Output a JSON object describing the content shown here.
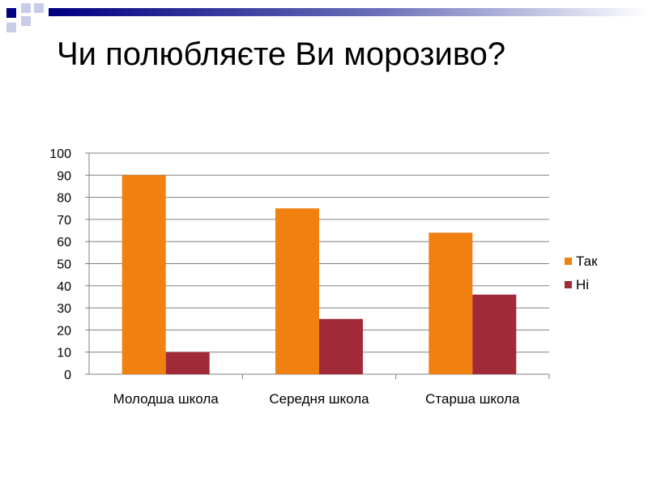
{
  "title": "Чи полюбляєте Ви морозиво?",
  "colors": {
    "accent_dark": "#000080",
    "accent_light": "#c8cce6",
    "series_yes": "#f08010",
    "series_no": "#a02a38",
    "grid": "#808080"
  },
  "chart_data": {
    "type": "bar",
    "title": "",
    "xlabel": "",
    "ylabel": "",
    "categories": [
      "Молодша школа",
      "Середня школа",
      "Старша школа"
    ],
    "series": [
      {
        "name": "Так",
        "values": [
          90,
          75,
          64
        ],
        "color": "#f08010"
      },
      {
        "name": "Ні",
        "values": [
          10,
          25,
          36
        ],
        "color": "#a02a38"
      }
    ],
    "ylim": [
      0,
      100
    ],
    "yticks": [
      0,
      10,
      20,
      30,
      40,
      50,
      60,
      70,
      80,
      90,
      100
    ],
    "grid": true,
    "legend_position": "right"
  }
}
